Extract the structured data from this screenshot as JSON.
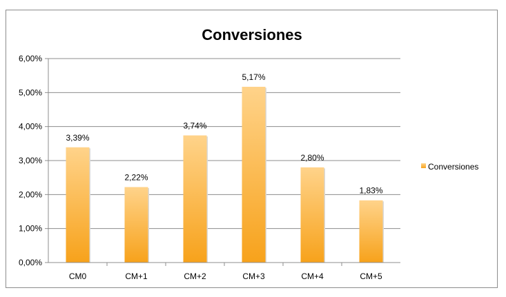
{
  "chart_data": {
    "type": "bar",
    "title": "Conversiones",
    "categories": [
      "CM0",
      "CM+1",
      "CM+2",
      "CM+3",
      "CM+4",
      "CM+5"
    ],
    "series": [
      {
        "name": "Conversiones",
        "values": [
          3.39,
          2.22,
          3.74,
          5.17,
          2.8,
          1.83
        ],
        "value_labels": [
          "3,39%",
          "2,22%",
          "3,74%",
          "5,17%",
          "2,80%",
          "1,83%"
        ]
      }
    ],
    "ylim": [
      0,
      6
    ],
    "yticks": [
      0,
      1,
      2,
      3,
      4,
      5,
      6
    ],
    "ytick_labels": [
      "0,00%",
      "1,00%",
      "2,00%",
      "3,00%",
      "4,00%",
      "5,00%",
      "6,00%"
    ],
    "grid": true,
    "legend_position": "right",
    "colors": {
      "bar_light": "#ffd38a",
      "bar_dark": "#f7a21b",
      "grid": "#8c8c8c",
      "axis": "#8c8c8c"
    }
  }
}
